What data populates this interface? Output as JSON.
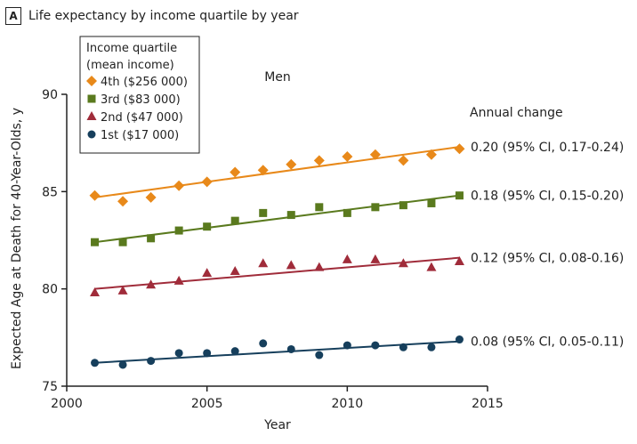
{
  "panel": {
    "letter": "A",
    "title": "Life expectancy by income quartile by year"
  },
  "chart_data": {
    "type": "scatter",
    "subtitle": "Men",
    "xlabel": "Year",
    "ylabel": "Expected Age at Death for 40-Year-Olds, y",
    "xlim": [
      2000,
      2015
    ],
    "ylim": [
      75,
      90
    ],
    "xticks": [
      2000,
      2005,
      2010,
      2015
    ],
    "yticks": [
      75,
      80,
      85,
      90
    ],
    "legend_title": [
      "Income quartile",
      "(mean income)"
    ],
    "legend_position": "top-left",
    "annual_change_header": "Annual change",
    "x": [
      2001,
      2002,
      2003,
      2004,
      2005,
      2006,
      2007,
      2008,
      2009,
      2010,
      2011,
      2012,
      2013,
      2014
    ],
    "series": [
      {
        "name": "4th ($256 000)",
        "color": "#e8891a",
        "marker": "diamond",
        "values": [
          84.8,
          84.5,
          84.7,
          85.3,
          85.5,
          86.0,
          86.1,
          86.4,
          86.6,
          86.8,
          86.9,
          86.6,
          86.9,
          87.2
        ],
        "trend": [
          84.7,
          87.3
        ],
        "annual_change": "0.20 (95% CI, 0.17-0.24)"
      },
      {
        "name": "3rd ($83 000)",
        "color": "#5a7a1e",
        "marker": "square",
        "values": [
          82.4,
          82.4,
          82.6,
          83.0,
          83.2,
          83.5,
          83.9,
          83.8,
          84.2,
          83.9,
          84.2,
          84.3,
          84.4,
          84.8
        ],
        "trend": [
          82.4,
          84.8
        ],
        "annual_change": "0.18 (95% CI, 0.15-0.20)"
      },
      {
        "name": "2nd ($47 000)",
        "color": "#a02c3a",
        "marker": "triangle",
        "values": [
          79.8,
          79.9,
          80.2,
          80.4,
          80.8,
          80.9,
          81.3,
          81.2,
          81.1,
          81.5,
          81.5,
          81.3,
          81.1,
          81.4
        ],
        "trend": [
          80.0,
          81.6
        ],
        "annual_change": "0.12 (95% CI, 0.08-0.16)"
      },
      {
        "name": "1st ($17 000)",
        "color": "#163f5c",
        "marker": "circle",
        "values": [
          76.2,
          76.1,
          76.3,
          76.7,
          76.7,
          76.8,
          77.2,
          76.9,
          76.6,
          77.1,
          77.1,
          77.0,
          77.0,
          77.4
        ],
        "trend": [
          76.2,
          77.3
        ],
        "annual_change": "0.08 (95% CI, 0.05-0.11)"
      }
    ]
  }
}
